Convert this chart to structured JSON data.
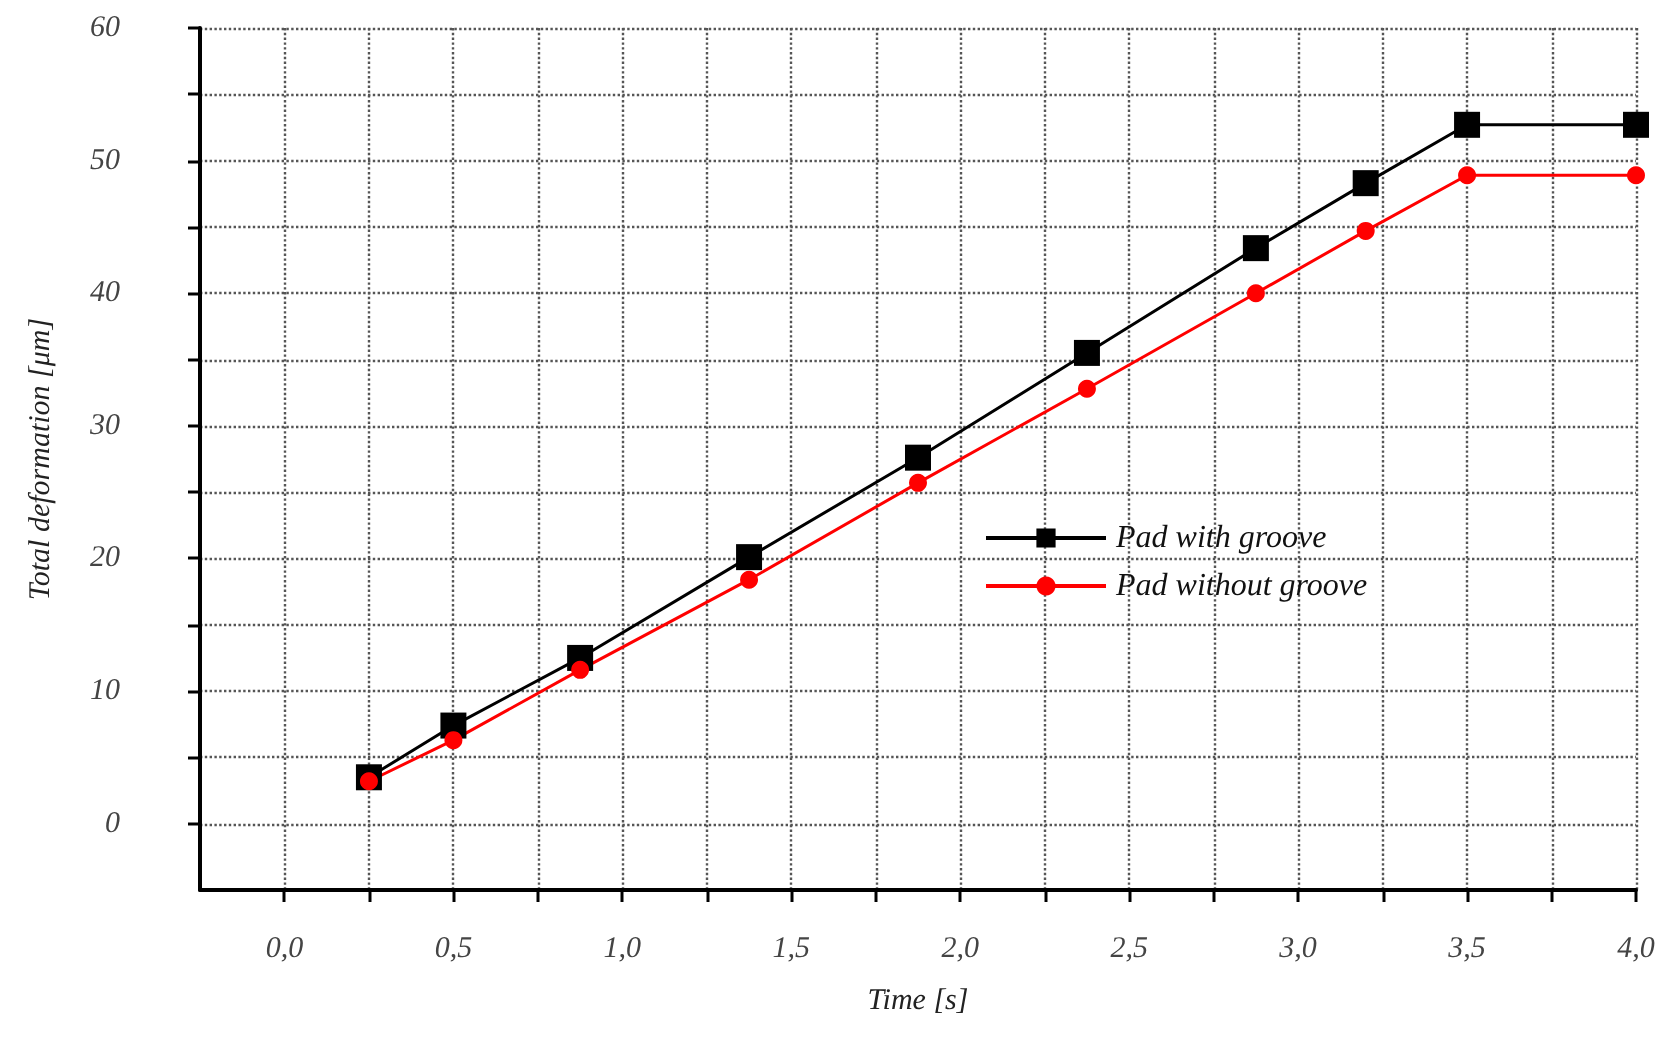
{
  "chart_data": {
    "type": "line",
    "xlabel": "Time [s]",
    "ylabel": "Total deformation [μm]",
    "xlim": [
      -0.25,
      4.0
    ],
    "ylim": [
      -5,
      60
    ],
    "xticks": [
      {
        "value": 0,
        "label": "0,0"
      },
      {
        "value": 0.25,
        "label": null
      },
      {
        "value": 0.5,
        "label": "0,5"
      },
      {
        "value": 0.75,
        "label": null
      },
      {
        "value": 1,
        "label": "1,0"
      },
      {
        "value": 1.25,
        "label": null
      },
      {
        "value": 1.5,
        "label": "1,5"
      },
      {
        "value": 1.75,
        "label": null
      },
      {
        "value": 2,
        "label": "2,0"
      },
      {
        "value": 2.25,
        "label": null
      },
      {
        "value": 2.5,
        "label": "2,5"
      },
      {
        "value": 2.75,
        "label": null
      },
      {
        "value": 3,
        "label": "3,0"
      },
      {
        "value": 3.25,
        "label": null
      },
      {
        "value": 3.5,
        "label": "3,5"
      },
      {
        "value": 3.75,
        "label": null
      },
      {
        "value": 4,
        "label": "4,0"
      }
    ],
    "yticks": [
      0,
      {
        "value": 5,
        "label": null
      },
      10,
      {
        "value": 15,
        "label": null
      },
      20,
      {
        "value": 25,
        "label": null
      },
      30,
      {
        "value": 35,
        "label": null
      },
      40,
      {
        "value": 45,
        "label": null
      },
      50,
      {
        "value": 55,
        "label": null
      },
      60
    ],
    "grid": true,
    "legend": "right",
    "line_style": "solid",
    "x": [
      0.25,
      0.5,
      0.875,
      1.375,
      1.875,
      2.375,
      2.875,
      3.2,
      3.5,
      4.0
    ],
    "series": [
      {
        "name": "Pad with groove",
        "color": "#000000",
        "marker": "square",
        "values": [
          3.5,
          7.4,
          12.5,
          20.1,
          27.6,
          35.5,
          43.4,
          48.3,
          52.7,
          52.7
        ]
      },
      {
        "name": "Pad without groove",
        "color": "#ff0000",
        "marker": "circle",
        "values": [
          3.2,
          6.3,
          11.6,
          18.4,
          25.7,
          32.8,
          40.0,
          44.7,
          48.9,
          48.9
        ]
      }
    ]
  }
}
